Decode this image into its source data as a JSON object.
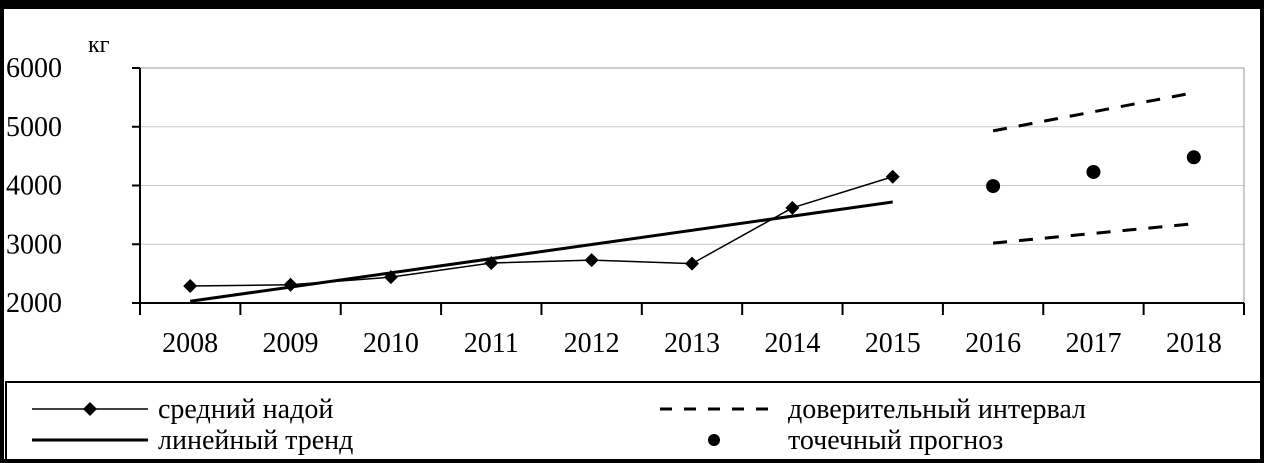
{
  "chart_data": {
    "type": "line",
    "ylabel": "кг",
    "ylim": [
      2000,
      6000
    ],
    "yticks": [
      2000,
      3000,
      4000,
      5000,
      6000
    ],
    "categories": [
      "2008",
      "2009",
      "2010",
      "2011",
      "2012",
      "2013",
      "2014",
      "2015",
      "2016",
      "2017",
      "2018"
    ],
    "grid": true,
    "legend_position": "bottom",
    "series": [
      {
        "name": "средний надой",
        "style": "line-diamond",
        "x": [
          "2008",
          "2009",
          "2010",
          "2011",
          "2012",
          "2013",
          "2014",
          "2015"
        ],
        "values": [
          2290,
          2310,
          2440,
          2680,
          2730,
          2670,
          3620,
          4150
        ]
      },
      {
        "name": "линейный тренд",
        "style": "thick-line",
        "x": [
          "2008",
          "2015"
        ],
        "values": [
          2030,
          3720
        ]
      },
      {
        "name": "доверительный интервал",
        "style": "dashed",
        "upper": {
          "x": [
            "2016",
            "2018"
          ],
          "values": [
            4930,
            5580
          ]
        },
        "lower": {
          "x": [
            "2016",
            "2018"
          ],
          "values": [
            3020,
            3350
          ]
        }
      },
      {
        "name": "точечный прогноз",
        "style": "dots",
        "x": [
          "2016",
          "2017",
          "2018"
        ],
        "values": [
          3990,
          4230,
          4480
        ]
      }
    ]
  },
  "colors": {
    "line": "#000000",
    "grid": "#c8c8c8",
    "frame": "#000000"
  }
}
